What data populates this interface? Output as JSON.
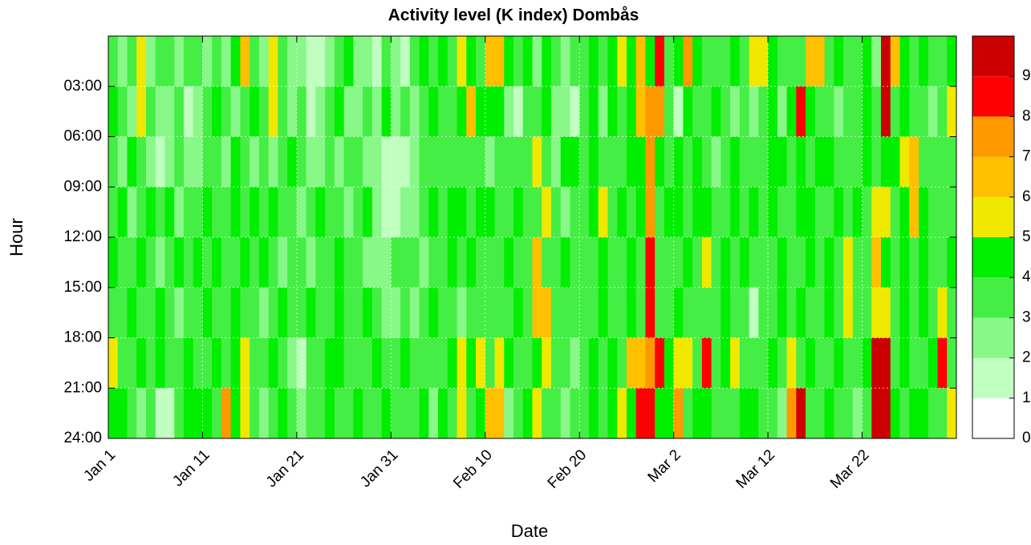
{
  "chart_data": {
    "type": "heatmap",
    "title": "Activity level (K index) Dombås",
    "x_label": "Date",
    "y_label": "Hour",
    "xlim": [
      0,
      90
    ],
    "ylim": [
      0,
      24
    ],
    "y_reversed": true,
    "grid": true,
    "xticks": [
      {
        "value": 0,
        "label": "Jan 1"
      },
      {
        "value": 10,
        "label": "Jan 11"
      },
      {
        "value": 20,
        "label": "Jan 21"
      },
      {
        "value": 30,
        "label": "Jan 31"
      },
      {
        "value": 40,
        "label": "Feb 10"
      },
      {
        "value": 50,
        "label": "Feb 20"
      },
      {
        "value": 60,
        "label": "Mar 2"
      },
      {
        "value": 70,
        "label": "Mar 12"
      },
      {
        "value": 80,
        "label": "Mar 22"
      }
    ],
    "yticks": [
      {
        "value": 3,
        "label": "03:00"
      },
      {
        "value": 6,
        "label": "06:00"
      },
      {
        "value": 9,
        "label": "09:00"
      },
      {
        "value": 12,
        "label": "12:00"
      },
      {
        "value": 15,
        "label": "15:00"
      },
      {
        "value": 18,
        "label": "18:00"
      },
      {
        "value": 21,
        "label": "21:00"
      },
      {
        "value": 24,
        "label": "24:00"
      }
    ],
    "x": [
      0,
      1,
      2,
      3,
      4,
      5,
      6,
      7,
      8,
      9,
      10,
      11,
      12,
      13,
      14,
      15,
      16,
      17,
      18,
      19,
      20,
      21,
      22,
      23,
      24,
      25,
      26,
      27,
      28,
      29,
      30,
      31,
      32,
      33,
      34,
      35,
      36,
      37,
      38,
      39,
      40,
      41,
      42,
      43,
      44,
      45,
      46,
      47,
      48,
      49,
      50,
      51,
      52,
      53,
      54,
      55,
      56,
      57,
      58,
      59,
      60,
      61,
      62,
      63,
      64,
      65,
      66,
      67,
      68,
      69,
      70,
      71,
      72,
      73,
      74,
      75,
      76,
      77,
      78,
      79,
      80,
      81,
      82,
      83,
      84,
      85,
      86,
      87,
      88,
      89
    ],
    "y": [
      0,
      3,
      6,
      9,
      12,
      15,
      18,
      21
    ],
    "z": [
      [
        3,
        2,
        3,
        5,
        2,
        3,
        3,
        2,
        3,
        3,
        2,
        3,
        2,
        4,
        6,
        3,
        2,
        5,
        3,
        2,
        2,
        1,
        1,
        2,
        3,
        4,
        2,
        2,
        1,
        3,
        2,
        1,
        3,
        4,
        3,
        4,
        3,
        5,
        4,
        3,
        6,
        6,
        4,
        3,
        4,
        2,
        4,
        3,
        2,
        3,
        3,
        4,
        3,
        4,
        5,
        4,
        6,
        4,
        8,
        3,
        4,
        7,
        4,
        3,
        3,
        3,
        4,
        3,
        5,
        5,
        4,
        3,
        3,
        3,
        6,
        6,
        3,
        4,
        3,
        3,
        4,
        2,
        9,
        6,
        4,
        3,
        4,
        3,
        3,
        4
      ],
      [
        4,
        3,
        2,
        5,
        3,
        2,
        2,
        3,
        1,
        2,
        3,
        4,
        3,
        2,
        3,
        4,
        3,
        5,
        3,
        2,
        3,
        1,
        2,
        3,
        4,
        2,
        2,
        3,
        2,
        4,
        2,
        3,
        2,
        3,
        4,
        3,
        3,
        4,
        6,
        4,
        4,
        4,
        2,
        1,
        3,
        3,
        4,
        2,
        2,
        1,
        3,
        4,
        2,
        4,
        3,
        4,
        6,
        7,
        7,
        3,
        1,
        4,
        3,
        3,
        4,
        3,
        2,
        3,
        2,
        3,
        4,
        2,
        4,
        8,
        4,
        3,
        3,
        2,
        3,
        3,
        4,
        3,
        9,
        3,
        4,
        3,
        3,
        2,
        3,
        5
      ],
      [
        3,
        2,
        4,
        3,
        2,
        1,
        2,
        3,
        2,
        2,
        3,
        3,
        2,
        4,
        3,
        2,
        3,
        2,
        3,
        4,
        3,
        2,
        2,
        3,
        2,
        3,
        3,
        2,
        2,
        1,
        1,
        1,
        2,
        3,
        3,
        3,
        3,
        3,
        3,
        3,
        2,
        3,
        3,
        3,
        3,
        5,
        3,
        2,
        4,
        4,
        3,
        4,
        3,
        3,
        3,
        4,
        4,
        7,
        4,
        3,
        4,
        3,
        4,
        3,
        2,
        3,
        4,
        3,
        3,
        3,
        4,
        4,
        3,
        4,
        3,
        4,
        4,
        3,
        3,
        3,
        4,
        3,
        4,
        4,
        5,
        6,
        3,
        3,
        3,
        3
      ],
      [
        3,
        4,
        2,
        3,
        4,
        3,
        4,
        2,
        3,
        3,
        4,
        3,
        3,
        4,
        3,
        4,
        3,
        4,
        3,
        3,
        2,
        3,
        4,
        3,
        3,
        2,
        3,
        4,
        2,
        1,
        1,
        2,
        2,
        3,
        4,
        3,
        4,
        4,
        3,
        4,
        4,
        3,
        3,
        4,
        3,
        3,
        5,
        3,
        2,
        3,
        3,
        4,
        5,
        3,
        4,
        3,
        4,
        7,
        3,
        4,
        4,
        3,
        4,
        4,
        3,
        3,
        4,
        3,
        4,
        3,
        4,
        3,
        3,
        4,
        4,
        3,
        3,
        4,
        3,
        4,
        3,
        5,
        5,
        3,
        4,
        6,
        4,
        3,
        3,
        3
      ],
      [
        4,
        3,
        3,
        4,
        3,
        2,
        3,
        4,
        3,
        4,
        3,
        4,
        3,
        3,
        4,
        3,
        4,
        3,
        2,
        3,
        3,
        2,
        3,
        3,
        4,
        3,
        3,
        2,
        2,
        2,
        3,
        3,
        3,
        2,
        3,
        3,
        4,
        3,
        4,
        3,
        3,
        3,
        4,
        3,
        3,
        6,
        3,
        3,
        4,
        3,
        3,
        3,
        4,
        3,
        3,
        4,
        3,
        8,
        3,
        3,
        3,
        4,
        3,
        5,
        3,
        4,
        3,
        4,
        3,
        3,
        3,
        4,
        3,
        3,
        4,
        3,
        4,
        3,
        5,
        3,
        3,
        6,
        4,
        3,
        4,
        3,
        4,
        3,
        3,
        4
      ],
      [
        3,
        3,
        4,
        3,
        3,
        4,
        3,
        2,
        3,
        3,
        4,
        3,
        3,
        4,
        3,
        3,
        2,
        3,
        4,
        3,
        3,
        4,
        3,
        3,
        4,
        3,
        3,
        4,
        3,
        2,
        2,
        3,
        2,
        3,
        4,
        3,
        3,
        2,
        3,
        3,
        3,
        3,
        3,
        4,
        3,
        6,
        6,
        3,
        3,
        3,
        3,
        3,
        4,
        3,
        3,
        4,
        3,
        8,
        3,
        3,
        4,
        3,
        3,
        3,
        3,
        4,
        3,
        3,
        1,
        3,
        3,
        4,
        3,
        4,
        3,
        3,
        4,
        3,
        5,
        3,
        3,
        5,
        5,
        3,
        4,
        3,
        4,
        3,
        5,
        3
      ],
      [
        5,
        3,
        3,
        4,
        3,
        4,
        3,
        3,
        4,
        3,
        3,
        4,
        3,
        4,
        5,
        3,
        3,
        4,
        3,
        2,
        1,
        3,
        3,
        4,
        4,
        3,
        3,
        3,
        4,
        3,
        3,
        4,
        3,
        3,
        3,
        3,
        4,
        5,
        4,
        5,
        3,
        5,
        4,
        3,
        3,
        4,
        5,
        3,
        3,
        2,
        3,
        4,
        3,
        4,
        3,
        6,
        6,
        7,
        8,
        4,
        5,
        5,
        3,
        8,
        3,
        4,
        5,
        3,
        3,
        3,
        4,
        3,
        5,
        3,
        4,
        3,
        3,
        4,
        3,
        3,
        4,
        9,
        9,
        3,
        4,
        3,
        3,
        4,
        8,
        3
      ],
      [
        4,
        4,
        3,
        2,
        3,
        1,
        1,
        3,
        4,
        4,
        4,
        3,
        7,
        4,
        5,
        3,
        2,
        3,
        4,
        3,
        2,
        3,
        3,
        4,
        3,
        3,
        4,
        3,
        3,
        4,
        3,
        3,
        3,
        4,
        2,
        4,
        3,
        5,
        3,
        4,
        6,
        6,
        2,
        3,
        4,
        5,
        3,
        3,
        2,
        3,
        3,
        4,
        3,
        4,
        5,
        4,
        8,
        8,
        4,
        4,
        7,
        3,
        4,
        4,
        3,
        3,
        3,
        4,
        4,
        3,
        3,
        2,
        7,
        9,
        3,
        3,
        4,
        3,
        3,
        2,
        3,
        9,
        9,
        4,
        3,
        4,
        4,
        3,
        3,
        5
      ]
    ],
    "colorbar": {
      "lim": [
        0,
        10
      ],
      "ticks": [
        0,
        1,
        2,
        3,
        4,
        5,
        6,
        7,
        8,
        9
      ],
      "colors": [
        "#ffffff",
        "#c0ffc0",
        "#88f888",
        "#44ee44",
        "#00ee00",
        "#f0e800",
        "#ffc000",
        "#ff9900",
        "#ff0000",
        "#cc0000"
      ]
    }
  }
}
